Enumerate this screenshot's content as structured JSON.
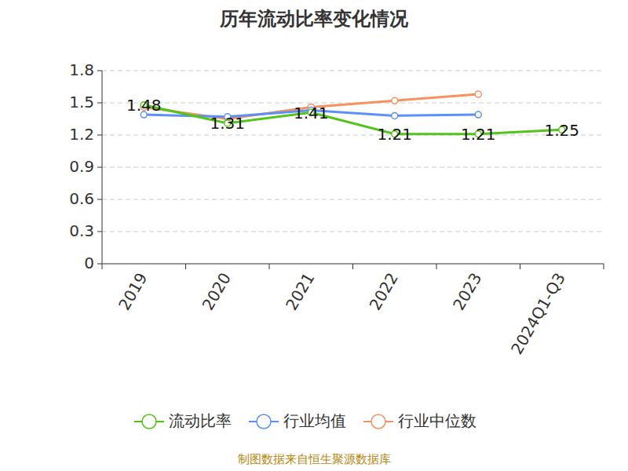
{
  "chart_data": {
    "type": "line",
    "title": "历年流动比率变化情况",
    "categories": [
      "2019",
      "2020",
      "2021",
      "2022",
      "2023",
      "2024Q1-Q3"
    ],
    "series": [
      {
        "name": "流动比率",
        "color": "#52c41a",
        "marker": "circle",
        "data_labels": true,
        "values": [
          1.48,
          1.31,
          1.41,
          1.21,
          1.21,
          1.25
        ]
      },
      {
        "name": "行业均值",
        "color": "#5b8ff9",
        "marker": "circle",
        "values": [
          1.39,
          1.37,
          1.43,
          1.38,
          1.39,
          null
        ]
      },
      {
        "name": "行业中位数",
        "color": "#f7925e",
        "marker": "circle",
        "values": [
          1.46,
          1.35,
          1.46,
          1.52,
          1.58,
          null
        ]
      }
    ],
    "ylim": [
      0,
      1.8
    ],
    "yticks": [
      0,
      0.3,
      0.6,
      0.9,
      1.2,
      1.5,
      1.8
    ],
    "grid": true,
    "legend": "bottom",
    "source": "制图数据来自恒生聚源数据库"
  }
}
